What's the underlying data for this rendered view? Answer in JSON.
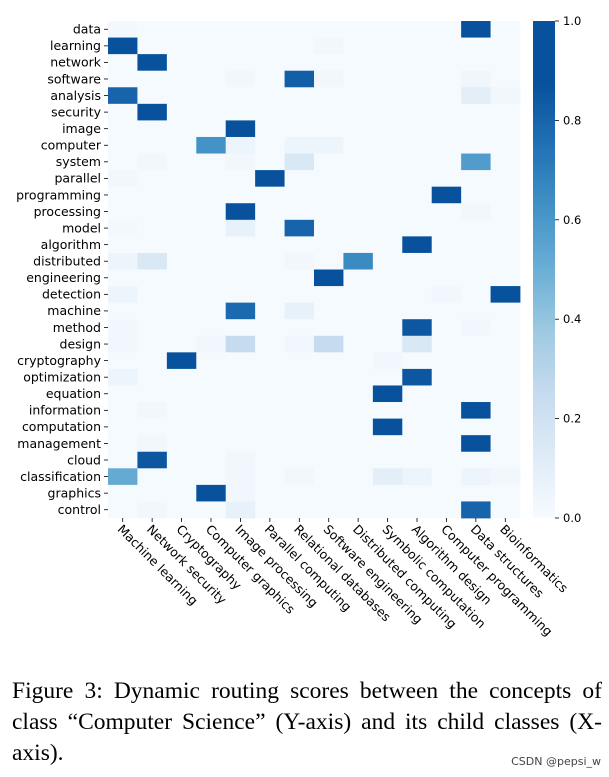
{
  "chart_data": {
    "type": "heatmap",
    "title": "",
    "xlabel": "",
    "ylabel": "",
    "x_categories": [
      "Machine learning",
      "Network security",
      "Cryptography",
      "Computer graphics",
      "Image processing",
      "Parallel computing",
      "Relational databases",
      "Software engineering",
      "Distributed computing",
      "Symbolic computation",
      "Algorithm design",
      "Computer programming",
      "Data structures",
      "Bioinformatics"
    ],
    "y_categories": [
      "data",
      "learning",
      "network",
      "software",
      "analysis",
      "security",
      "image",
      "computer",
      "system",
      "parallel",
      "programming",
      "processing",
      "model",
      "algorithm",
      "distributed",
      "engineering",
      "detection",
      "machine",
      "method",
      "design",
      "cryptography",
      "optimization",
      "equation",
      "information",
      "computation",
      "management",
      "cloud",
      "classification",
      "graphics",
      "control"
    ],
    "values": [
      [
        0.02,
        0.01,
        0.01,
        0.01,
        0.01,
        0.01,
        0.01,
        0.01,
        0.01,
        0.01,
        0.01,
        0.01,
        0.92,
        0.01
      ],
      [
        0.9,
        0.01,
        0.01,
        0.01,
        0.01,
        0.01,
        0.01,
        0.03,
        0.01,
        0.01,
        0.01,
        0.01,
        0.01,
        0.01
      ],
      [
        0.01,
        0.92,
        0.01,
        0.01,
        0.01,
        0.01,
        0.01,
        0.01,
        0.01,
        0.01,
        0.01,
        0.01,
        0.01,
        0.01
      ],
      [
        0.01,
        0.01,
        0.01,
        0.01,
        0.03,
        0.01,
        0.82,
        0.03,
        0.01,
        0.01,
        0.01,
        0.01,
        0.04,
        0.01
      ],
      [
        0.8,
        0.01,
        0.01,
        0.01,
        0.01,
        0.01,
        0.01,
        0.01,
        0.01,
        0.01,
        0.01,
        0.01,
        0.1,
        0.03
      ],
      [
        0.01,
        0.92,
        0.01,
        0.01,
        0.01,
        0.01,
        0.01,
        0.01,
        0.01,
        0.01,
        0.01,
        0.01,
        0.01,
        0.01
      ],
      [
        0.01,
        0.01,
        0.01,
        0.01,
        0.92,
        0.01,
        0.01,
        0.01,
        0.01,
        0.01,
        0.01,
        0.01,
        0.01,
        0.01
      ],
      [
        0.01,
        0.01,
        0.01,
        0.62,
        0.05,
        0.01,
        0.05,
        0.05,
        0.01,
        0.01,
        0.01,
        0.01,
        0.01,
        0.01
      ],
      [
        0.01,
        0.03,
        0.01,
        0.01,
        0.03,
        0.01,
        0.15,
        0.01,
        0.01,
        0.01,
        0.01,
        0.01,
        0.58,
        0.01
      ],
      [
        0.03,
        0.01,
        0.01,
        0.01,
        0.01,
        0.9,
        0.01,
        0.01,
        0.01,
        0.01,
        0.01,
        0.01,
        0.01,
        0.01
      ],
      [
        0.01,
        0.01,
        0.01,
        0.01,
        0.01,
        0.01,
        0.01,
        0.01,
        0.01,
        0.01,
        0.01,
        0.9,
        0.01,
        0.01
      ],
      [
        0.01,
        0.01,
        0.01,
        0.01,
        0.92,
        0.01,
        0.01,
        0.01,
        0.01,
        0.01,
        0.01,
        0.01,
        0.03,
        0.01
      ],
      [
        0.02,
        0.01,
        0.01,
        0.01,
        0.08,
        0.01,
        0.8,
        0.01,
        0.01,
        0.01,
        0.01,
        0.01,
        0.01,
        0.01
      ],
      [
        0.01,
        0.01,
        0.01,
        0.01,
        0.01,
        0.01,
        0.01,
        0.01,
        0.01,
        0.01,
        0.95,
        0.01,
        0.01,
        0.01
      ],
      [
        0.05,
        0.15,
        0.01,
        0.01,
        0.01,
        0.01,
        0.03,
        0.01,
        0.65,
        0.01,
        0.01,
        0.01,
        0.01,
        0.01
      ],
      [
        0.01,
        0.01,
        0.01,
        0.01,
        0.01,
        0.01,
        0.01,
        0.95,
        0.01,
        0.01,
        0.01,
        0.01,
        0.01,
        0.01
      ],
      [
        0.05,
        0.01,
        0.01,
        0.01,
        0.01,
        0.01,
        0.01,
        0.01,
        0.01,
        0.01,
        0.01,
        0.03,
        0.01,
        0.88
      ],
      [
        0.01,
        0.01,
        0.01,
        0.01,
        0.78,
        0.01,
        0.08,
        0.01,
        0.01,
        0.01,
        0.01,
        0.01,
        0.01,
        0.01
      ],
      [
        0.03,
        0.01,
        0.01,
        0.01,
        0.01,
        0.01,
        0.01,
        0.01,
        0.01,
        0.01,
        0.85,
        0.01,
        0.03,
        0.01
      ],
      [
        0.03,
        0.01,
        0.01,
        0.03,
        0.25,
        0.01,
        0.03,
        0.25,
        0.01,
        0.01,
        0.15,
        0.01,
        0.01,
        0.01
      ],
      [
        0.01,
        0.01,
        0.95,
        0.01,
        0.01,
        0.01,
        0.01,
        0.01,
        0.01,
        0.03,
        0.01,
        0.01,
        0.01,
        0.01
      ],
      [
        0.05,
        0.01,
        0.01,
        0.01,
        0.01,
        0.01,
        0.01,
        0.01,
        0.01,
        0.01,
        0.85,
        0.01,
        0.01,
        0.01
      ],
      [
        0.01,
        0.01,
        0.01,
        0.01,
        0.01,
        0.01,
        0.01,
        0.01,
        0.01,
        0.92,
        0.01,
        0.01,
        0.01,
        0.01
      ],
      [
        0.01,
        0.03,
        0.01,
        0.01,
        0.01,
        0.01,
        0.01,
        0.01,
        0.01,
        0.01,
        0.01,
        0.01,
        0.88,
        0.01
      ],
      [
        0.01,
        0.01,
        0.01,
        0.01,
        0.01,
        0.01,
        0.01,
        0.01,
        0.01,
        0.92,
        0.01,
        0.01,
        0.01,
        0.01
      ],
      [
        0.01,
        0.03,
        0.01,
        0.01,
        0.01,
        0.01,
        0.01,
        0.01,
        0.01,
        0.01,
        0.01,
        0.01,
        0.9,
        0.01
      ],
      [
        0.01,
        0.85,
        0.01,
        0.01,
        0.03,
        0.01,
        0.01,
        0.01,
        0.01,
        0.01,
        0.01,
        0.01,
        0.01,
        0.01
      ],
      [
        0.52,
        0.01,
        0.01,
        0.01,
        0.03,
        0.01,
        0.03,
        0.01,
        0.01,
        0.1,
        0.05,
        0.01,
        0.05,
        0.03
      ],
      [
        0.01,
        0.01,
        0.01,
        0.92,
        0.03,
        0.01,
        0.01,
        0.01,
        0.01,
        0.01,
        0.01,
        0.01,
        0.01,
        0.01
      ],
      [
        0.01,
        0.03,
        0.01,
        0.01,
        0.08,
        0.01,
        0.01,
        0.01,
        0.01,
        0.01,
        0.01,
        0.01,
        0.8,
        0.01
      ]
    ],
    "vmin": 0.0,
    "vmax": 1.0,
    "colormap": "Blues",
    "colorbar": {
      "ticks": [
        0.0,
        0.2,
        0.4,
        0.6,
        0.8,
        1.0
      ],
      "tick_labels": [
        "0.0",
        "0.2",
        "0.4",
        "0.6",
        "0.8",
        "1.0"
      ]
    },
    "colors": {
      "low": "#f7fbff",
      "high": "#08519c"
    }
  },
  "caption": "Figure 3:  Dynamic routing scores between the concepts of class “Computer Science” (Y-axis) and its child classes (X-axis).",
  "watermark": "CSDN @pepsi_w"
}
